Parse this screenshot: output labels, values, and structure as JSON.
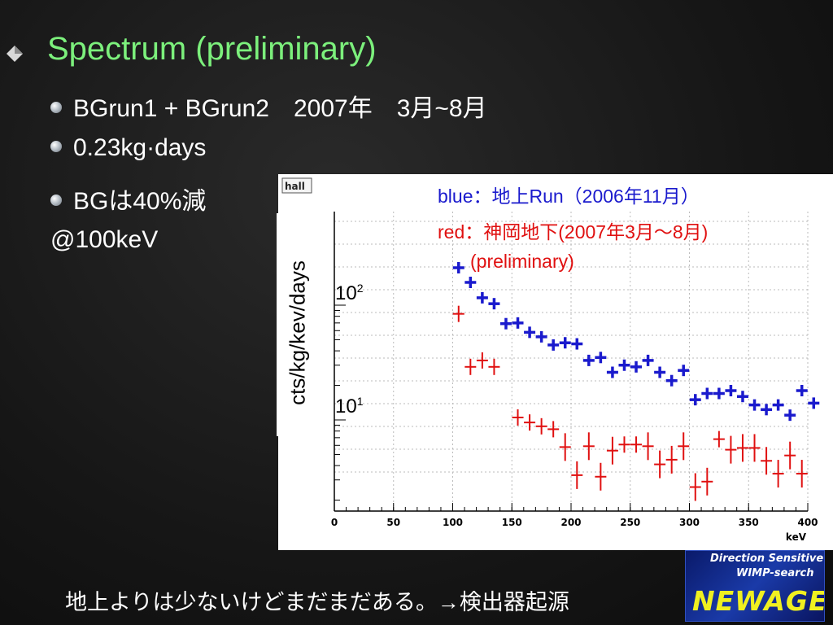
{
  "slide": {
    "title": "Spectrum (preliminary)",
    "bullets": [
      "BGrun1 + BGrun2　2007年　3月~8月",
      "0.23kg·days",
      "BGは40%減"
    ],
    "plain_line": "@100keV",
    "caption": "地上よりは少ないけどまだまだある。→検出器起源"
  },
  "logo": {
    "line1": "Direction Sensitive",
    "line2": "WIMP-search",
    "main": "NEWAGE"
  },
  "chart_data": {
    "type": "scatter",
    "panel_label": "hall",
    "ylabel": "cts/kg/kev/days",
    "xlabel": "keV",
    "xlim": [
      0,
      400
    ],
    "ylog": true,
    "grid": true,
    "x_ticks": [
      0,
      50,
      100,
      150,
      200,
      250,
      300,
      350,
      400
    ],
    "y_tick_labels": [
      {
        "base": "10",
        "exp": "2",
        "value": 100
      },
      {
        "base": "10",
        "exp": "1",
        "value": 10
      }
    ],
    "legend": [
      {
        "text": "blue：地上Run（2006年11月）",
        "color": "#1a1acd"
      },
      {
        "text": "red：神岡地下(2007年3月～8月)",
        "color": "#e01010"
      },
      {
        "text": "(preliminary)",
        "color": "#e01010"
      }
    ],
    "series": [
      {
        "name": "blue",
        "color": "#1a1acd",
        "points": [
          {
            "x": 105,
            "y": 212
          },
          {
            "x": 115,
            "y": 158
          },
          {
            "x": 125,
            "y": 116
          },
          {
            "x": 135,
            "y": 103
          },
          {
            "x": 145,
            "y": 69
          },
          {
            "x": 155,
            "y": 70
          },
          {
            "x": 165,
            "y": 58
          },
          {
            "x": 175,
            "y": 53
          },
          {
            "x": 185,
            "y": 45
          },
          {
            "x": 195,
            "y": 47
          },
          {
            "x": 205,
            "y": 46
          },
          {
            "x": 215,
            "y": 33
          },
          {
            "x": 225,
            "y": 35
          },
          {
            "x": 235,
            "y": 26
          },
          {
            "x": 245,
            "y": 30
          },
          {
            "x": 255,
            "y": 29
          },
          {
            "x": 265,
            "y": 33
          },
          {
            "x": 275,
            "y": 26
          },
          {
            "x": 285,
            "y": 22
          },
          {
            "x": 295,
            "y": 27
          },
          {
            "x": 305,
            "y": 15
          },
          {
            "x": 315,
            "y": 17
          },
          {
            "x": 325,
            "y": 17
          },
          {
            "x": 335,
            "y": 18
          },
          {
            "x": 345,
            "y": 16
          },
          {
            "x": 355,
            "y": 13.5
          },
          {
            "x": 365,
            "y": 12.3
          },
          {
            "x": 375,
            "y": 13.5
          },
          {
            "x": 385,
            "y": 11
          },
          {
            "x": 395,
            "y": 18
          },
          {
            "x": 405,
            "y": 14
          }
        ]
      },
      {
        "name": "red",
        "color": "#e01010",
        "points": [
          {
            "x": 105,
            "y": 84
          },
          {
            "x": 115,
            "y": 29
          },
          {
            "x": 125,
            "y": 33
          },
          {
            "x": 135,
            "y": 29
          },
          {
            "x": 155,
            "y": 10.5
          },
          {
            "x": 165,
            "y": 9.5
          },
          {
            "x": 175,
            "y": 8.8
          },
          {
            "x": 185,
            "y": 8.3
          },
          {
            "x": 195,
            "y": 5.8
          },
          {
            "x": 205,
            "y": 3.3
          },
          {
            "x": 215,
            "y": 5.9
          },
          {
            "x": 225,
            "y": 3.2
          },
          {
            "x": 235,
            "y": 5.4
          },
          {
            "x": 245,
            "y": 6.1
          },
          {
            "x": 255,
            "y": 6.1
          },
          {
            "x": 265,
            "y": 5.9
          },
          {
            "x": 275,
            "y": 4.1
          },
          {
            "x": 285,
            "y": 4.5
          },
          {
            "x": 295,
            "y": 5.9
          },
          {
            "x": 305,
            "y": 2.6
          },
          {
            "x": 315,
            "y": 2.9
          },
          {
            "x": 325,
            "y": 6.8
          },
          {
            "x": 335,
            "y": 5.5
          },
          {
            "x": 345,
            "y": 5.7
          },
          {
            "x": 355,
            "y": 5.7
          },
          {
            "x": 365,
            "y": 4.4
          },
          {
            "x": 375,
            "y": 3.4
          },
          {
            "x": 385,
            "y": 4.9
          },
          {
            "x": 395,
            "y": 3.4
          }
        ]
      }
    ]
  }
}
